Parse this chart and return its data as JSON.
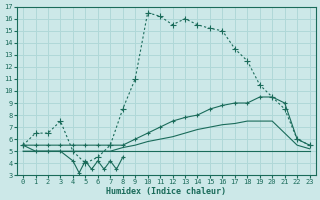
{
  "xlabel": "Humidex (Indice chaleur)",
  "bg_color": "#cce8e8",
  "grid_color": "#b0d8d8",
  "line_color": "#1a6b5a",
  "xlim": [
    -0.5,
    23.5
  ],
  "ylim": [
    3,
    17
  ],
  "yticks": [
    3,
    4,
    5,
    6,
    7,
    8,
    9,
    10,
    11,
    12,
    13,
    14,
    15,
    16,
    17
  ],
  "xticks": [
    0,
    1,
    2,
    3,
    4,
    5,
    6,
    7,
    8,
    9,
    10,
    11,
    12,
    13,
    14,
    15,
    16,
    17,
    18,
    19,
    20,
    21,
    22,
    23
  ],
  "series_main": [
    5.5,
    6.5,
    6.5,
    7.5,
    5.0,
    4.0,
    4.5,
    5.5,
    8.5,
    11.0,
    16.5,
    16.2,
    15.5,
    16.0,
    15.5,
    15.2,
    15.0,
    13.5,
    12.5,
    10.5,
    9.5,
    8.5,
    6.0,
    5.5
  ],
  "series_max": [
    5.5,
    5.5,
    5.5,
    5.5,
    5.5,
    5.5,
    5.5,
    5.5,
    5.5,
    6.0,
    6.5,
    7.0,
    7.5,
    7.8,
    8.0,
    8.5,
    8.8,
    9.0,
    9.0,
    9.5,
    9.5,
    9.0,
    6.0,
    5.5
  ],
  "series_min": [
    5.0,
    5.0,
    5.0,
    5.0,
    5.0,
    5.0,
    5.0,
    5.0,
    5.0,
    5.0,
    5.0,
    5.0,
    5.0,
    5.0,
    5.0,
    5.0,
    5.0,
    5.0,
    5.0,
    5.0,
    5.0,
    5.0,
    5.0,
    5.0
  ],
  "series_mean": [
    5.0,
    5.0,
    5.0,
    5.0,
    5.0,
    5.0,
    5.0,
    5.0,
    5.3,
    5.5,
    5.8,
    6.0,
    6.2,
    6.5,
    6.8,
    7.0,
    7.2,
    7.3,
    7.5,
    7.5,
    7.5,
    6.5,
    5.5,
    5.2
  ],
  "series_zigzag_x": [
    0,
    1,
    2,
    3,
    4,
    4.5,
    5,
    5.5,
    6,
    6.5,
    7,
    7.5,
    8
  ],
  "series_zigzag_y": [
    5.5,
    5.0,
    5.0,
    5.0,
    4.2,
    3.2,
    4.2,
    3.5,
    4.2,
    3.5,
    4.2,
    3.5,
    4.5
  ]
}
